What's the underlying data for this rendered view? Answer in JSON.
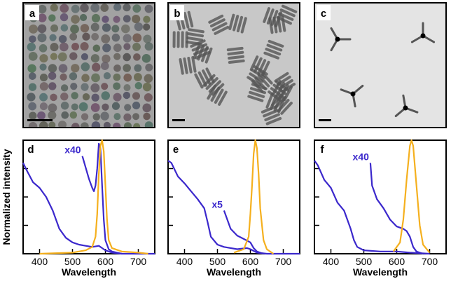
{
  "images": [
    {
      "label": "a"
    },
    {
      "label": "b"
    },
    {
      "label": "c"
    }
  ],
  "ylabel": "Normalized intensity",
  "chart_data": [
    {
      "type": "line",
      "panel_label": "d",
      "xlabel": "Wavelength",
      "xlim": [
        350,
        750
      ],
      "xticks": [
        400,
        500,
        600,
        700
      ],
      "ylim": [
        0,
        1
      ],
      "yticks": [
        0.25,
        0.5,
        0.75
      ],
      "series": [
        {
          "color": "#3b28cc",
          "x": [
            350,
            360,
            380,
            400,
            420,
            440,
            460,
            480,
            500,
            520,
            540,
            560,
            580,
            590,
            600,
            620,
            650,
            700,
            750
          ],
          "values": [
            0.8,
            0.74,
            0.63,
            0.58,
            0.5,
            0.38,
            0.22,
            0.14,
            0.1,
            0.08,
            0.07,
            0.06,
            0.07,
            0.05,
            0.03,
            0.01,
            0,
            0,
            0
          ]
        },
        {
          "name": "x40",
          "color": "#3b28cc",
          "x": [
            530,
            540,
            550,
            560,
            565,
            570,
            575,
            580,
            585,
            590,
            595,
            600,
            610,
            620,
            650
          ],
          "values": [
            0.86,
            0.76,
            0.66,
            0.58,
            0.55,
            0.6,
            0.75,
            0.97,
            0.93,
            0.6,
            0.3,
            0.12,
            0.04,
            0.02,
            0
          ]
        },
        {
          "color": "#f5b01e",
          "x": [
            400,
            500,
            540,
            560,
            570,
            575,
            580,
            585,
            590,
            595,
            600,
            605,
            610,
            620,
            650,
            700,
            730
          ],
          "values": [
            0,
            0.01,
            0.03,
            0.06,
            0.15,
            0.35,
            0.7,
            0.95,
            1,
            0.9,
            0.6,
            0.3,
            0.12,
            0.05,
            0.02,
            0.01,
            0
          ]
        }
      ]
    },
    {
      "type": "line",
      "panel_label": "e",
      "xlabel": "Wavelength",
      "xlim": [
        350,
        750
      ],
      "xticks": [
        400,
        500,
        600,
        700
      ],
      "ylim": [
        0,
        1
      ],
      "yticks": [
        0.25,
        0.5,
        0.75
      ],
      "series": [
        {
          "color": "#3b28cc",
          "x": [
            350,
            360,
            380,
            400,
            420,
            440,
            460,
            470,
            480,
            500,
            520,
            560,
            590,
            600,
            620,
            650,
            750
          ],
          "values": [
            0.82,
            0.8,
            0.68,
            0.62,
            0.55,
            0.48,
            0.4,
            0.28,
            0.15,
            0.08,
            0.06,
            0.04,
            0.05,
            0.04,
            0.01,
            0,
            0
          ]
        },
        {
          "name": "x5",
          "color": "#3b28cc",
          "x": [
            520,
            540,
            560,
            580,
            600,
            610,
            620,
            640
          ],
          "values": [
            0.38,
            0.22,
            0.16,
            0.13,
            0.1,
            0.05,
            0.02,
            0
          ]
        },
        {
          "color": "#f5b01e",
          "x": [
            550,
            580,
            595,
            600,
            605,
            610,
            615,
            620,
            625,
            630,
            640,
            650,
            670
          ],
          "values": [
            0.01,
            0.04,
            0.15,
            0.35,
            0.6,
            0.88,
            1,
            0.93,
            0.7,
            0.4,
            0.12,
            0.04,
            0
          ]
        }
      ]
    },
    {
      "type": "line",
      "panel_label": "f",
      "xlabel": "Wavelength",
      "xlim": [
        350,
        750
      ],
      "xticks": [
        400,
        500,
        600,
        700
      ],
      "ylim": [
        0,
        1
      ],
      "yticks": [
        0.25,
        0.5,
        0.75
      ],
      "series": [
        {
          "color": "#3b28cc",
          "x": [
            350,
            360,
            380,
            400,
            420,
            440,
            460,
            470,
            480,
            500,
            550,
            600,
            640,
            700
          ],
          "values": [
            0.82,
            0.78,
            0.65,
            0.58,
            0.45,
            0.38,
            0.22,
            0.12,
            0.06,
            0.03,
            0.02,
            0.02,
            0.01,
            0
          ]
        },
        {
          "name": "x40",
          "color": "#3b28cc",
          "x": [
            520,
            525,
            540,
            560,
            580,
            600,
            620,
            630,
            640,
            650,
            660,
            680
          ],
          "values": [
            0.8,
            0.6,
            0.48,
            0.4,
            0.3,
            0.24,
            0.22,
            0.2,
            0.15,
            0.06,
            0.02,
            0
          ]
        },
        {
          "color": "#f5b01e",
          "x": [
            590,
            610,
            620,
            630,
            640,
            645,
            650,
            660,
            670,
            680,
            700
          ],
          "values": [
            0.02,
            0.1,
            0.3,
            0.65,
            0.95,
            1,
            0.95,
            0.6,
            0.25,
            0.08,
            0.01
          ]
        }
      ]
    }
  ]
}
